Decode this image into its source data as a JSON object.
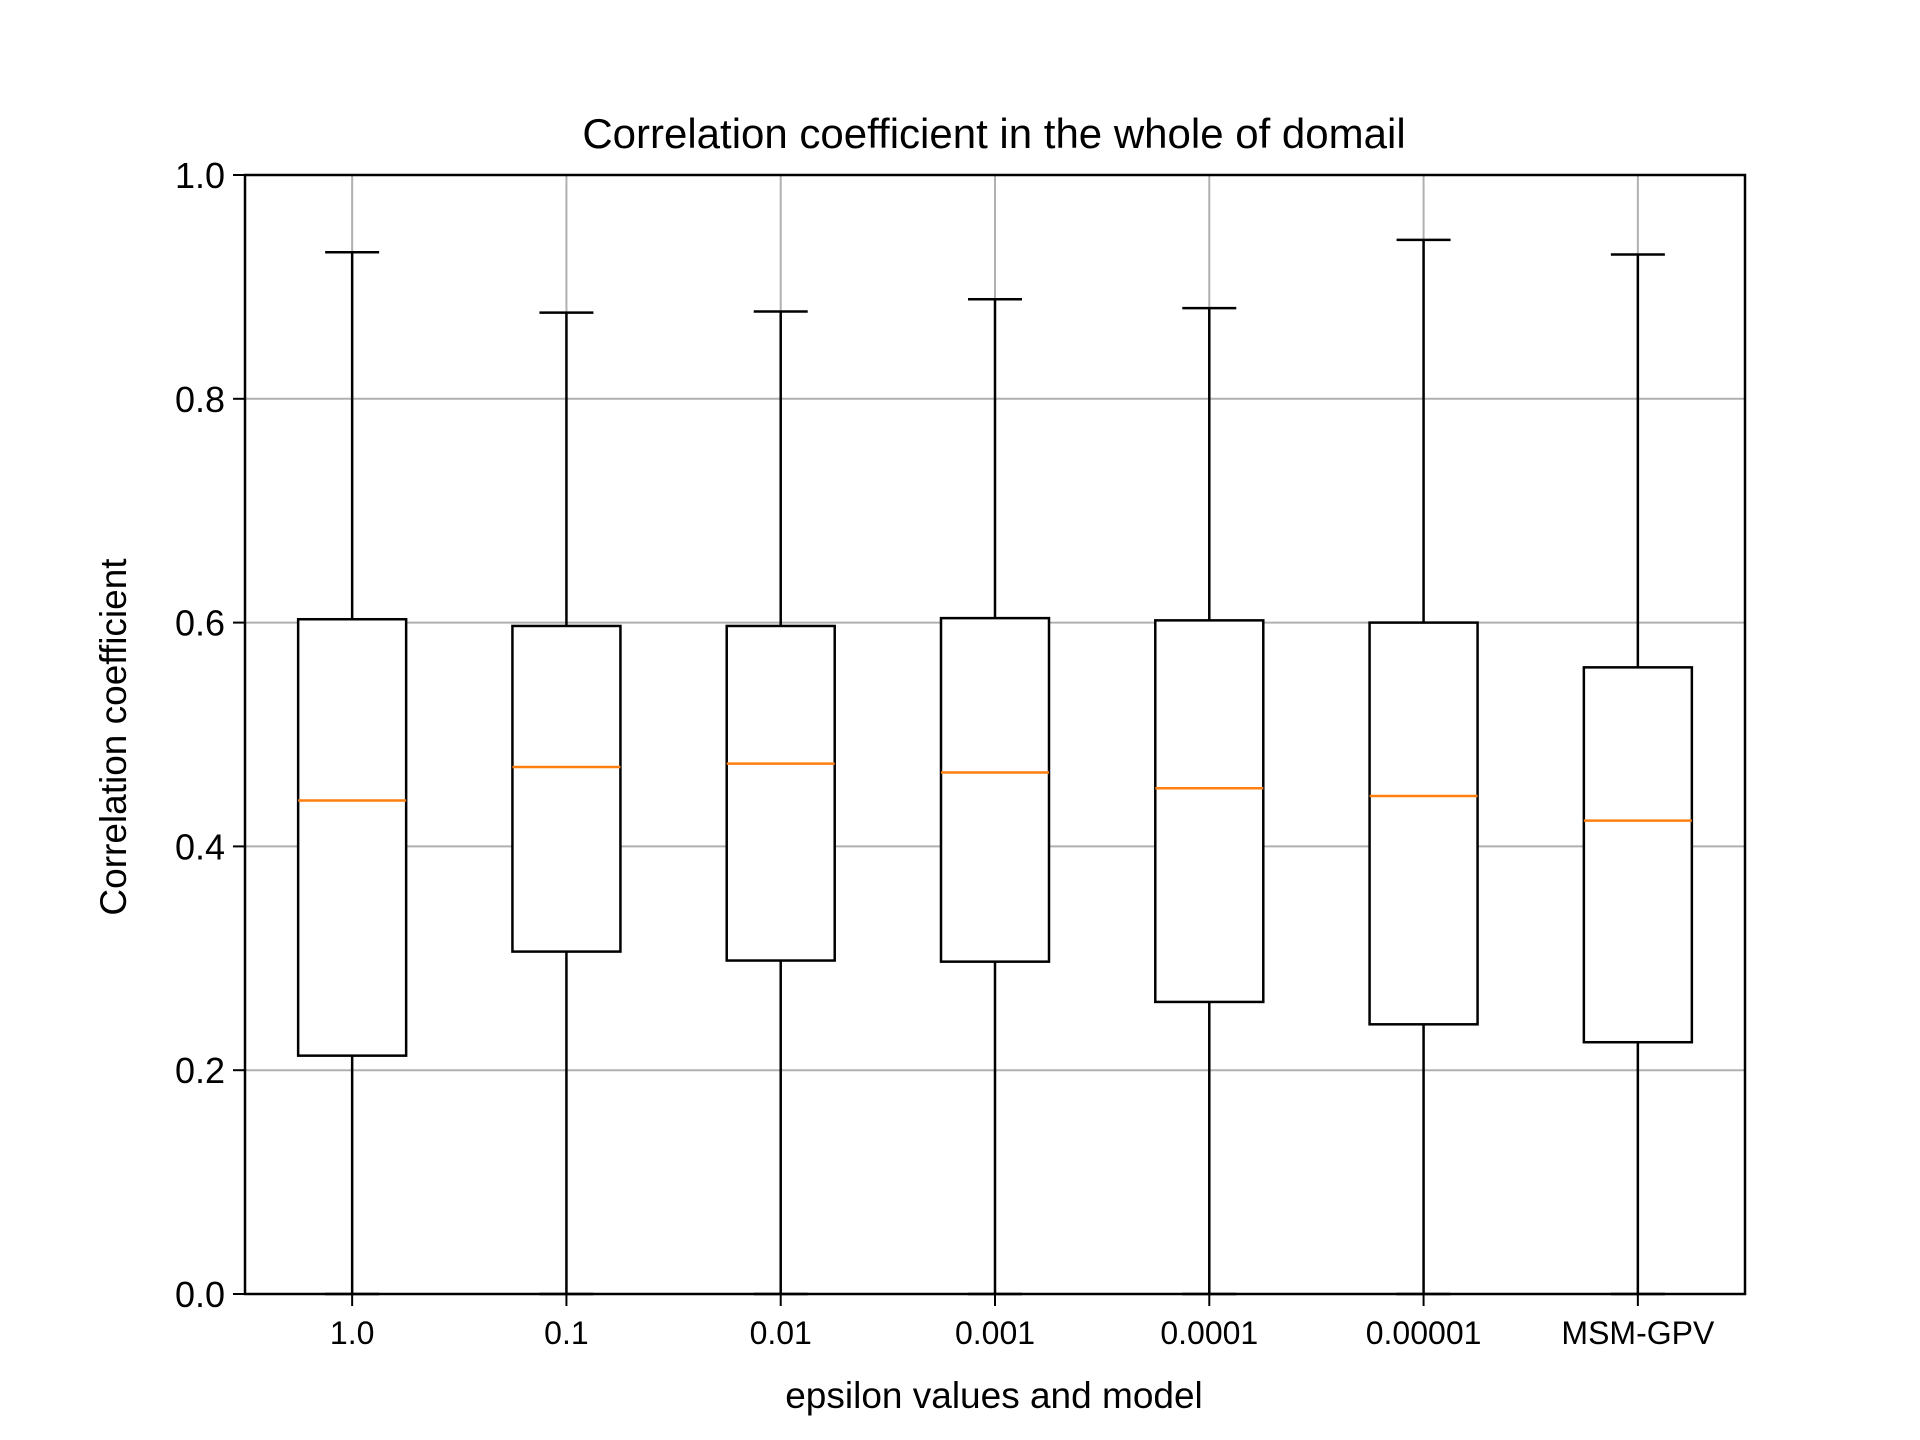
{
  "chart_data": {
    "type": "box",
    "title": "Correlation coefficient in the whole of domail",
    "xlabel": "epsilon values and model",
    "ylabel": "Correlation coefficient",
    "ylim": [
      0.0,
      1.0
    ],
    "yticks": [
      "0.0",
      "0.2",
      "0.4",
      "0.6",
      "0.8",
      "1.0"
    ],
    "ytick_values": [
      0.0,
      0.2,
      0.4,
      0.6,
      0.8,
      1.0
    ],
    "grid": true,
    "categories": [
      "1.0",
      "0.1",
      "0.01",
      "0.001",
      "0.0001",
      "0.00001",
      "MSM-GPV"
    ],
    "boxes": [
      {
        "whislo": 0.0,
        "q1": 0.213,
        "med": 0.441,
        "q3": 0.603,
        "whishi": 0.931
      },
      {
        "whislo": 0.0,
        "q1": 0.306,
        "med": 0.471,
        "q3": 0.597,
        "whishi": 0.877
      },
      {
        "whislo": 0.0,
        "q1": 0.298,
        "med": 0.474,
        "q3": 0.597,
        "whishi": 0.878
      },
      {
        "whislo": 0.0,
        "q1": 0.297,
        "med": 0.466,
        "q3": 0.604,
        "whishi": 0.889
      },
      {
        "whislo": 0.0,
        "q1": 0.261,
        "med": 0.452,
        "q3": 0.602,
        "whishi": 0.881
      },
      {
        "whislo": 0.0,
        "q1": 0.241,
        "med": 0.445,
        "q3": 0.6,
        "whishi": 0.942
      },
      {
        "whislo": 0.0,
        "q1": 0.225,
        "med": 0.423,
        "q3": 0.56,
        "whishi": 0.929
      }
    ],
    "colors": {
      "box": "#000000",
      "median": "#ff7f0e",
      "grid": "#b0b0b0"
    }
  }
}
